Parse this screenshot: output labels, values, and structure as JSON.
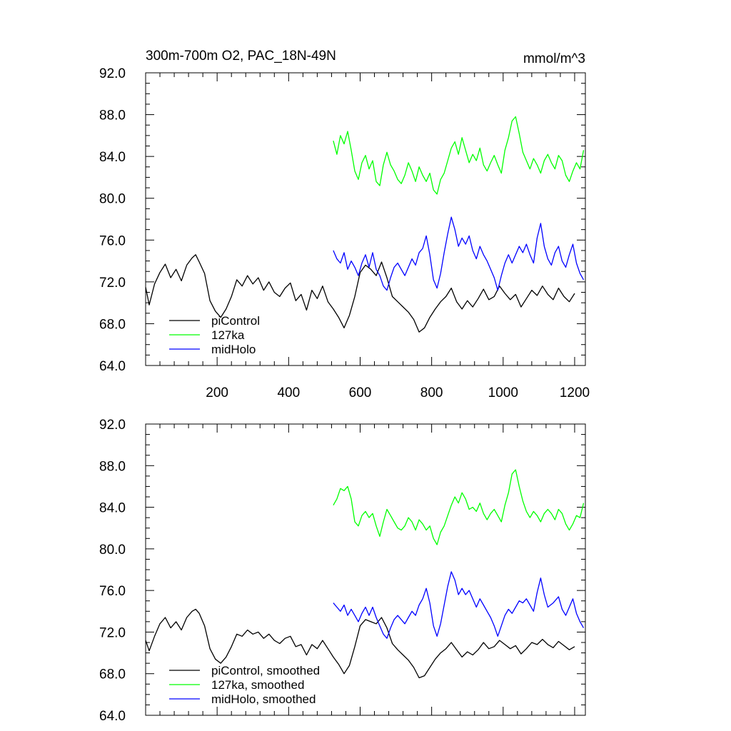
{
  "figure": {
    "title": "300m-700m O2, PAC_18N-49N",
    "units": "mmol/m^3"
  },
  "colors": {
    "piControl": "#000000",
    "ka127": "#00ff00",
    "midHolo": "#0000ff"
  },
  "chart_data": [
    {
      "type": "line",
      "title": "300m-700m O2, PAC_18N-49N",
      "units_label": "mmol/m^3",
      "xlim": [
        0,
        1230
      ],
      "ylim": [
        64,
        92
      ],
      "xticks": [
        200,
        400,
        600,
        800,
        1000,
        1200
      ],
      "xtick_labels": [
        "200",
        "400",
        "600",
        "800",
        "1000",
        "1200"
      ],
      "yticks": [
        64,
        68,
        72,
        76,
        80,
        84,
        88,
        92
      ],
      "ytick_labels": [
        "64.0",
        "68.0",
        "72.0",
        "76.0",
        "80.0",
        "84.0",
        "88.0",
        "92.0"
      ],
      "legend_position": "bottom-left",
      "series": [
        {
          "name": "piControl",
          "color": "#000000",
          "x": [
            0,
            10,
            25,
            40,
            55,
            70,
            85,
            100,
            115,
            130,
            140,
            150,
            165,
            180,
            195,
            210,
            225,
            240,
            255,
            270,
            285,
            300,
            315,
            330,
            345,
            360,
            375,
            390,
            405,
            420,
            435,
            450,
            465,
            480,
            495,
            510,
            525,
            540,
            555,
            570,
            585,
            600,
            615,
            630,
            645,
            660,
            675,
            690,
            705,
            720,
            735,
            750,
            765,
            780,
            795,
            810,
            825,
            840,
            855,
            870,
            885,
            900,
            915,
            930,
            945,
            960,
            975,
            990,
            1005,
            1020,
            1035,
            1050,
            1065,
            1080,
            1095,
            1110,
            1125,
            1140,
            1155,
            1170,
            1185,
            1200
          ],
          "y": [
            71.5,
            69.8,
            71.8,
            72.9,
            73.7,
            72.4,
            73.2,
            72.1,
            73.6,
            74.3,
            74.6,
            73.9,
            72.8,
            70.2,
            69.2,
            68.6,
            69.4,
            70.6,
            72.2,
            71.6,
            72.6,
            71.8,
            72.4,
            71.2,
            72.0,
            71.0,
            70.6,
            71.4,
            71.9,
            70.2,
            70.8,
            69.3,
            71.2,
            70.4,
            71.6,
            70.1,
            69.4,
            68.6,
            67.6,
            68.8,
            70.6,
            72.9,
            73.6,
            73.2,
            72.6,
            73.9,
            72.4,
            70.6,
            70.1,
            69.6,
            69.1,
            68.4,
            67.2,
            67.6,
            68.6,
            69.4,
            70.1,
            70.6,
            71.4,
            70.1,
            69.4,
            70.2,
            69.6,
            70.4,
            71.3,
            70.3,
            70.6,
            71.6,
            70.9,
            70.3,
            70.8,
            69.6,
            70.4,
            71.2,
            70.7,
            71.6,
            70.8,
            70.3,
            71.4,
            70.6,
            70.1,
            70.9
          ]
        },
        {
          "name": "127ka",
          "color": "#00ff00",
          "x": [
            525,
            535,
            545,
            555,
            565,
            575,
            585,
            595,
            605,
            615,
            625,
            635,
            645,
            655,
            665,
            675,
            685,
            695,
            705,
            715,
            725,
            735,
            745,
            755,
            765,
            775,
            785,
            795,
            805,
            815,
            825,
            835,
            845,
            855,
            865,
            875,
            885,
            895,
            905,
            915,
            925,
            935,
            945,
            955,
            965,
            975,
            985,
            995,
            1005,
            1015,
            1025,
            1035,
            1045,
            1055,
            1065,
            1075,
            1085,
            1095,
            1105,
            1115,
            1125,
            1135,
            1145,
            1155,
            1165,
            1175,
            1185,
            1195,
            1205,
            1215,
            1225
          ],
          "y": [
            85.5,
            84.2,
            86.0,
            85.2,
            86.4,
            84.6,
            82.6,
            81.8,
            83.4,
            84.1,
            82.8,
            83.6,
            81.6,
            81.2,
            83.2,
            84.4,
            83.2,
            82.6,
            81.8,
            81.4,
            82.2,
            83.4,
            82.6,
            81.6,
            83.0,
            82.2,
            81.6,
            82.4,
            80.8,
            80.4,
            81.8,
            82.4,
            83.6,
            84.8,
            85.4,
            84.2,
            85.8,
            84.6,
            83.4,
            84.2,
            83.6,
            84.8,
            83.2,
            82.6,
            83.4,
            84.1,
            83.2,
            82.4,
            84.6,
            85.8,
            87.4,
            87.8,
            86.2,
            84.4,
            83.6,
            82.8,
            83.8,
            83.2,
            82.4,
            83.6,
            84.2,
            83.4,
            82.8,
            84.1,
            83.6,
            82.2,
            81.6,
            82.6,
            83.4,
            82.8,
            84.6
          ]
        },
        {
          "name": "midHolo",
          "color": "#0000ff",
          "x": [
            525,
            535,
            545,
            555,
            565,
            575,
            585,
            595,
            605,
            615,
            625,
            635,
            645,
            655,
            665,
            675,
            685,
            695,
            705,
            715,
            725,
            735,
            745,
            755,
            765,
            775,
            785,
            795,
            805,
            815,
            825,
            835,
            845,
            855,
            865,
            875,
            885,
            895,
            905,
            915,
            925,
            935,
            945,
            955,
            965,
            975,
            985,
            995,
            1005,
            1015,
            1025,
            1035,
            1045,
            1055,
            1065,
            1075,
            1085,
            1095,
            1105,
            1115,
            1125,
            1135,
            1145,
            1155,
            1165,
            1175,
            1185,
            1195,
            1205,
            1215,
            1225
          ],
          "y": [
            75.0,
            74.2,
            73.8,
            74.8,
            73.2,
            74.0,
            73.4,
            72.6,
            73.8,
            74.6,
            73.4,
            74.8,
            73.2,
            72.6,
            71.6,
            71.2,
            72.4,
            73.4,
            73.8,
            73.2,
            72.6,
            73.4,
            74.2,
            73.6,
            74.8,
            75.2,
            76.4,
            74.6,
            72.2,
            71.4,
            72.8,
            74.8,
            76.6,
            78.2,
            77.0,
            75.4,
            76.2,
            75.6,
            76.4,
            75.0,
            74.2,
            75.4,
            74.6,
            74.0,
            73.2,
            72.4,
            71.2,
            72.6,
            73.8,
            74.6,
            73.8,
            74.6,
            75.4,
            74.8,
            75.6,
            74.6,
            73.8,
            76.2,
            77.6,
            75.4,
            74.2,
            73.6,
            74.8,
            75.4,
            74.0,
            73.4,
            74.6,
            75.6,
            73.8,
            72.8,
            72.2
          ]
        }
      ],
      "legend": [
        "piControl",
        "127ka",
        "midHolo"
      ]
    },
    {
      "type": "line",
      "title": "",
      "xlim": [
        0,
        1230
      ],
      "ylim": [
        64,
        92
      ],
      "yticks": [
        64,
        68,
        72,
        76,
        80,
        84,
        88,
        92
      ],
      "ytick_labels": [
        "64.0",
        "68.0",
        "72.0",
        "76.0",
        "80.0",
        "84.0",
        "88.0",
        "92.0"
      ],
      "legend_position": "bottom-left",
      "series": [
        {
          "name": "piControl, smoothed",
          "color": "#000000",
          "x": [
            0,
            10,
            25,
            40,
            55,
            70,
            85,
            100,
            115,
            130,
            140,
            150,
            165,
            180,
            195,
            210,
            225,
            240,
            255,
            270,
            285,
            300,
            315,
            330,
            345,
            360,
            375,
            390,
            405,
            420,
            435,
            450,
            465,
            480,
            495,
            510,
            525,
            540,
            555,
            570,
            585,
            600,
            615,
            630,
            645,
            660,
            675,
            690,
            705,
            720,
            735,
            750,
            765,
            780,
            795,
            810,
            825,
            840,
            855,
            870,
            885,
            900,
            915,
            930,
            945,
            960,
            975,
            990,
            1005,
            1020,
            1035,
            1050,
            1065,
            1080,
            1095,
            1110,
            1125,
            1140,
            1155,
            1170,
            1185,
            1200
          ],
          "y": [
            71.2,
            70.2,
            71.6,
            72.8,
            73.4,
            72.4,
            73.0,
            72.2,
            73.4,
            74.0,
            74.2,
            73.8,
            72.6,
            70.4,
            69.4,
            69.0,
            69.6,
            70.6,
            71.8,
            71.6,
            72.2,
            71.8,
            72.0,
            71.4,
            71.8,
            71.2,
            70.9,
            71.4,
            71.6,
            70.6,
            70.8,
            69.8,
            70.8,
            70.4,
            71.2,
            70.4,
            69.6,
            68.9,
            68.0,
            68.8,
            70.6,
            72.6,
            73.2,
            73.0,
            72.8,
            73.4,
            72.4,
            70.9,
            70.3,
            69.8,
            69.3,
            68.6,
            67.6,
            67.8,
            68.6,
            69.4,
            70.0,
            70.4,
            71.0,
            70.3,
            69.6,
            70.1,
            69.8,
            70.3,
            71.0,
            70.4,
            70.6,
            71.2,
            70.8,
            70.4,
            70.7,
            69.9,
            70.4,
            71.0,
            70.8,
            71.3,
            70.8,
            70.5,
            71.1,
            70.7,
            70.3,
            70.6
          ]
        },
        {
          "name": "127ka, smoothed",
          "color": "#00ff00",
          "x": [
            525,
            535,
            545,
            555,
            565,
            575,
            585,
            595,
            605,
            615,
            625,
            635,
            645,
            655,
            665,
            675,
            685,
            695,
            705,
            715,
            725,
            735,
            745,
            755,
            765,
            775,
            785,
            795,
            805,
            815,
            825,
            835,
            845,
            855,
            865,
            875,
            885,
            895,
            905,
            915,
            925,
            935,
            945,
            955,
            965,
            975,
            985,
            995,
            1005,
            1015,
            1025,
            1035,
            1045,
            1055,
            1065,
            1075,
            1085,
            1095,
            1105,
            1115,
            1125,
            1135,
            1145,
            1155,
            1165,
            1175,
            1185,
            1195,
            1205,
            1215,
            1225
          ],
          "y": [
            84.2,
            84.8,
            85.8,
            85.6,
            86.0,
            84.8,
            82.6,
            82.2,
            83.2,
            83.6,
            83.0,
            83.4,
            82.2,
            81.2,
            82.6,
            83.8,
            83.2,
            82.6,
            82.0,
            81.8,
            82.2,
            83.0,
            82.6,
            81.8,
            82.8,
            82.4,
            81.8,
            82.2,
            81.0,
            80.4,
            81.6,
            82.2,
            83.2,
            84.2,
            85.0,
            84.4,
            85.4,
            84.8,
            83.8,
            84.0,
            83.6,
            84.4,
            83.4,
            82.8,
            83.4,
            83.8,
            83.2,
            82.6,
            84.2,
            85.4,
            87.2,
            87.6,
            86.0,
            84.6,
            83.6,
            83.0,
            83.6,
            83.2,
            82.6,
            83.4,
            83.8,
            83.4,
            82.8,
            83.8,
            83.4,
            82.4,
            81.8,
            82.4,
            83.2,
            83.0,
            84.4
          ]
        },
        {
          "name": "midHolo, smoothed",
          "color": "#0000ff",
          "x": [
            525,
            535,
            545,
            555,
            565,
            575,
            585,
            595,
            605,
            615,
            625,
            635,
            645,
            655,
            665,
            675,
            685,
            695,
            705,
            715,
            725,
            735,
            745,
            755,
            765,
            775,
            785,
            795,
            805,
            815,
            825,
            835,
            845,
            855,
            865,
            875,
            885,
            895,
            905,
            915,
            925,
            935,
            945,
            955,
            965,
            975,
            985,
            995,
            1005,
            1015,
            1025,
            1035,
            1045,
            1055,
            1065,
            1075,
            1085,
            1095,
            1105,
            1115,
            1125,
            1140,
            1155,
            1165,
            1175,
            1185,
            1195,
            1205,
            1215,
            1225
          ],
          "y": [
            74.8,
            74.4,
            74.0,
            74.6,
            73.6,
            74.2,
            73.6,
            73.0,
            73.8,
            74.4,
            73.6,
            74.4,
            73.4,
            72.6,
            71.8,
            71.4,
            72.4,
            73.2,
            73.6,
            73.2,
            72.8,
            73.4,
            74.0,
            73.6,
            74.6,
            75.2,
            76.2,
            74.8,
            72.6,
            71.6,
            72.8,
            74.6,
            76.4,
            77.8,
            77.0,
            75.6,
            76.2,
            75.6,
            76.0,
            75.2,
            74.4,
            75.2,
            74.6,
            74.0,
            73.4,
            72.6,
            71.6,
            72.6,
            73.6,
            74.2,
            73.8,
            74.4,
            75.0,
            74.8,
            75.2,
            74.6,
            74.0,
            75.8,
            77.2,
            75.6,
            74.4,
            74.8,
            75.4,
            74.2,
            73.6,
            74.4,
            75.2,
            73.8,
            73.0,
            72.4
          ]
        }
      ],
      "legend": [
        "piControl, smoothed",
        "127ka, smoothed",
        "midHolo, smoothed"
      ]
    }
  ]
}
